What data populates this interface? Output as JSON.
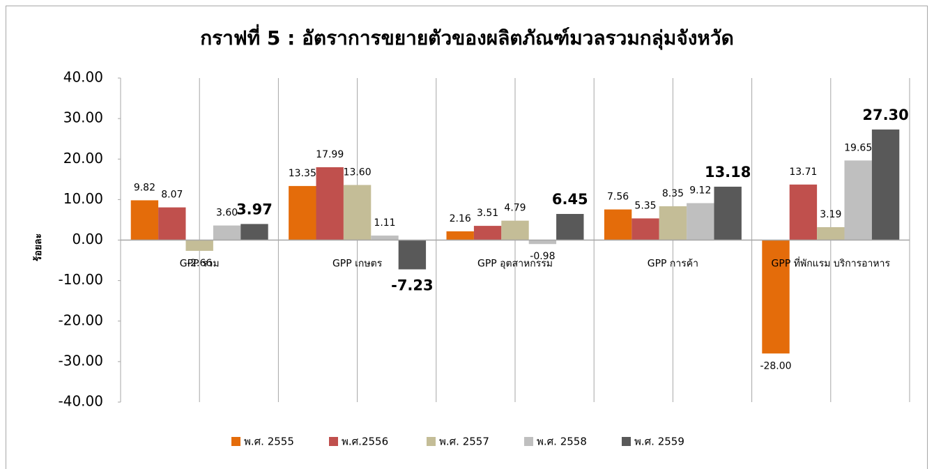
{
  "chart_data": {
    "type": "bar",
    "title": "กราฟที่ 5 : อัตราการขยายตัวของผลิตภัณฑ์มวลรวมกลุ่มจังหวัด",
    "y_label": "ร้อยละ",
    "categories": [
      "GPP รวม",
      "GPP เกษตร",
      "GPP อุตสาหกรรม",
      "GPP การค้า",
      "GPP ที่พักแรม บริการอาหาร"
    ],
    "series": [
      {
        "name": "พ.ศ. 2555",
        "color": "#e46c0a",
        "values": [
          9.82,
          13.35,
          2.16,
          7.56,
          -28.0
        ],
        "value_labels": [
          "9.82",
          "13.35",
          "2.16",
          "7.56",
          "-28.00"
        ]
      },
      {
        "name": "พ.ศ.2556",
        "color": "#c0504d",
        "values": [
          8.07,
          17.99,
          3.51,
          5.35,
          13.71
        ],
        "value_labels": [
          "8.07",
          "17.99",
          "3.51",
          "5.35",
          "13.71"
        ]
      },
      {
        "name": "พ.ศ. 2557",
        "color": "#c4bd97",
        "values": [
          -2.66,
          13.6,
          4.79,
          8.35,
          3.19
        ],
        "value_labels": [
          "-2.66",
          "13.60",
          "4.79",
          "8.35",
          "3.19"
        ]
      },
      {
        "name": "พ.ศ. 2558",
        "color": "#bfbfbf",
        "values": [
          3.6,
          1.11,
          -0.98,
          9.12,
          19.65
        ],
        "value_labels": [
          "3.60",
          "1.11",
          "-0.98",
          "9.12",
          "19.65"
        ]
      },
      {
        "name": "พ.ศ. 2559",
        "color": "#595959",
        "values": [
          3.97,
          -7.23,
          6.45,
          13.18,
          27.3
        ],
        "value_labels": [
          "3.97",
          "-7.23",
          "6.45",
          "13.18",
          "27.30"
        ]
      }
    ],
    "ylim": [
      -40,
      40
    ],
    "yticks": [
      {
        "value": -40,
        "label": "-40.00"
      },
      {
        "value": -30,
        "label": "-30.00"
      },
      {
        "value": -20,
        "label": "-20.00"
      },
      {
        "value": -10,
        "label": "-10.00"
      },
      {
        "value": 0,
        "label": "0.00"
      },
      {
        "value": 10,
        "label": "10.00"
      },
      {
        "value": 20,
        "label": "20.00"
      },
      {
        "value": 30,
        "label": "30.00"
      },
      {
        "value": 40,
        "label": "40.00"
      }
    ],
    "grid": false,
    "legend": "bottom"
  }
}
